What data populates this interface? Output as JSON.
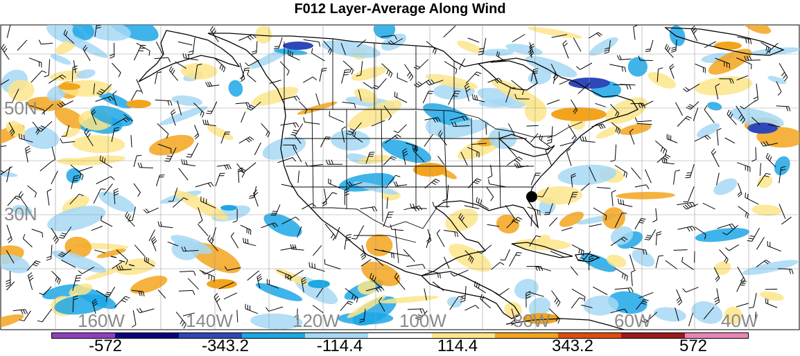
{
  "title": "F012 Layer-Average Along Wind",
  "map": {
    "lat_labels": [
      "50N",
      "30N"
    ],
    "lon_labels": [
      "160W",
      "140W",
      "120W",
      "100W",
      "80W",
      "60W",
      "40W"
    ],
    "colors": {
      "land_outline": "#000000",
      "gridline": "#9a9a9a",
      "axis_label": "#8a8a8a"
    }
  },
  "colorbar": {
    "colors": [
      "#8f3fc0",
      "#06067a",
      "#2f48b8",
      "#1ca7e6",
      "#a6d8f5",
      "#ffffff",
      "#fde58a",
      "#f3a41c",
      "#e04b10",
      "#9c1a1a",
      "#ea84b5"
    ],
    "labels": [
      "-572",
      "-343.2",
      "-114.4",
      "114.4",
      "343.2",
      "572"
    ]
  },
  "marker": {
    "name": "station-dot",
    "color": "#000000"
  }
}
